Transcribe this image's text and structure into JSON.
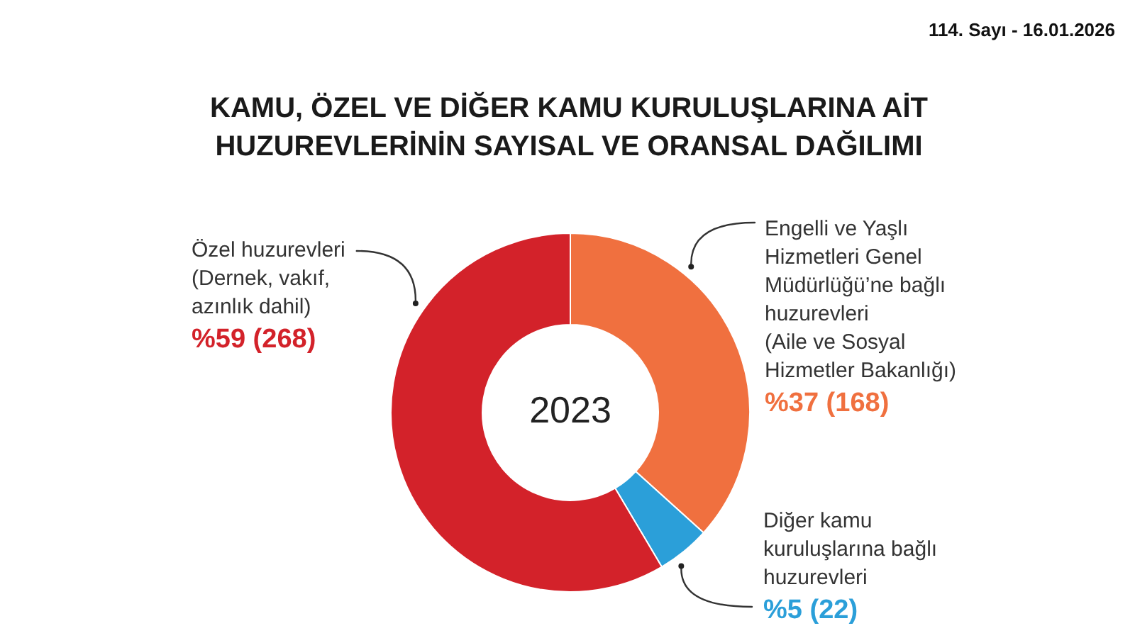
{
  "chart_data": {
    "type": "donut",
    "title": "KAMU, ÖZEL VE DİĞER KAMU KURULUŞLARINA AİT HUZUREVLERİNİN SAYISAL VE ORANSAL DAĞILIMI",
    "categories": [
      "Engelli ve Yaşlı Hizmetleri Genel Müdürlüğü’ne bağlı huzurevleri (Aile ve Sosyal Hizmetler Bakanlığı)",
      "Diğer kamu kuruluşlarına bağlı huzurevleri",
      "Özel huzurevleri (Dernek, vakıf, azınlık dahil)"
    ],
    "values": [
      168,
      22,
      268
    ],
    "value_labels": [
      "%37 (168)",
      "%5 (22)",
      "%59 (268)"
    ],
    "colors": [
      "#f0703f",
      "#2b9fd9",
      "#d3222a"
    ],
    "annotations": [
      "2023",
      "114. Sayı - 16.01.2026"
    ]
  }
}
